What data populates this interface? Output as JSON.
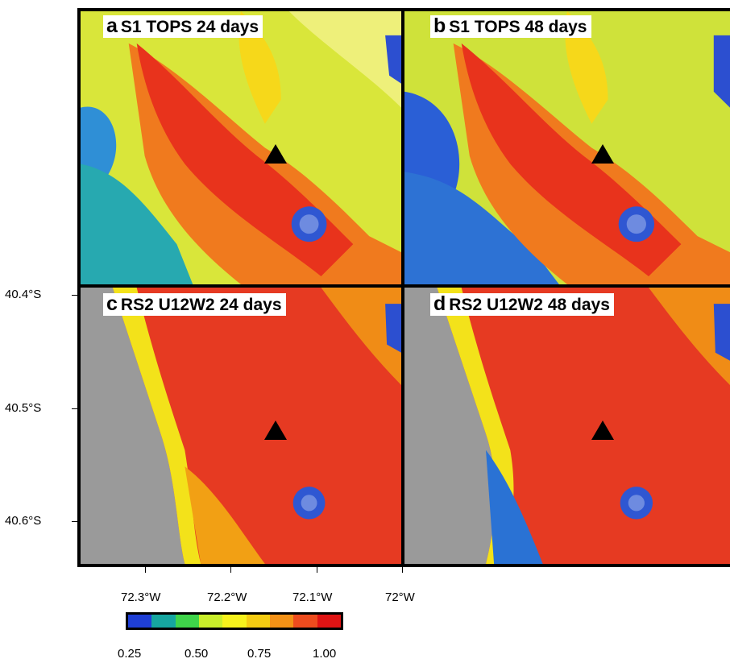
{
  "panels": [
    {
      "letter": "a",
      "title": "S1 TOPS 24 days"
    },
    {
      "letter": "b",
      "title": "S1 TOPS 48 days"
    },
    {
      "letter": "c",
      "title": "RS2 U12W2 24 days"
    },
    {
      "letter": "d",
      "title": "RS2 U12W2 48 days"
    }
  ],
  "axes": {
    "y_ticks": [
      "40.4°S",
      "40.5°S",
      "40.6°S"
    ],
    "x_ticks": [
      "72.3°W",
      "72.2°W",
      "72.1°W",
      "72°W"
    ]
  },
  "colorbar": {
    "ticks": [
      "0.25",
      "0.50",
      "0.75",
      "1.00"
    ],
    "colors": [
      "#1f3fd6",
      "#16a6a0",
      "#3fd44a",
      "#c9ee2a",
      "#f6f21c",
      "#f4cc12",
      "#f39116",
      "#ee4c1e",
      "#e01414"
    ],
    "range": [
      0.25,
      1.0
    ]
  },
  "volcano_marker": "black-triangle"
}
